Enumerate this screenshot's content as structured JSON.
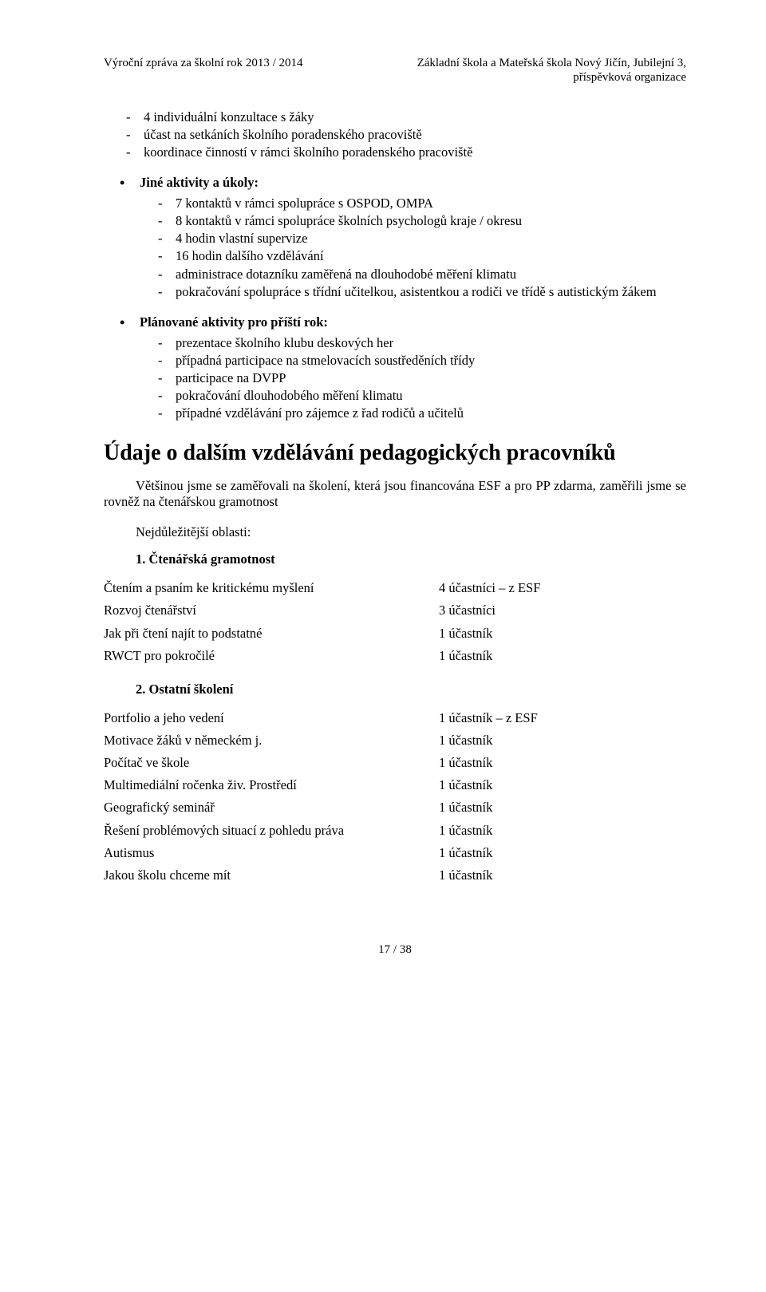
{
  "header": {
    "left": "Výroční zpráva za školní rok 2013 / 2014",
    "right_line1": "Základní škola a Mateřská škola Nový Jičín, Jubilejní 3,",
    "right_line2": "příspěvková organizace"
  },
  "section_a": {
    "items": [
      "4 individuální konzultace s žáky",
      "účast na setkáních školního poradenského pracoviště",
      "koordinace činností v rámci školního poradenského pracoviště"
    ]
  },
  "bullet1": {
    "title": "Jiné aktivity a úkoly:"
  },
  "section_b": {
    "items": [
      "7 kontaktů v rámci spolupráce s OSPOD, OMPA",
      "8 kontaktů v rámci spolupráce školních psychologů kraje / okresu",
      "4 hodin vlastní supervize",
      "16 hodin dalšího vzdělávání",
      "administrace dotazníku zaměřená na dlouhodobé měření klimatu",
      "pokračování spolupráce s třídní učitelkou, asistentkou a rodiči ve třídě s autistickým žákem"
    ]
  },
  "bullet2": {
    "title": "Plánované aktivity pro příští rok:"
  },
  "section_c": {
    "items": [
      "prezentace školního klubu deskových her",
      "případná participace na stmelovacích soustředěních třídy",
      "participace na DVPP",
      "pokračování dlouhodobého měření klimatu",
      "případné vzdělávání pro zájemce z řad rodičů a učitelů"
    ]
  },
  "h1": "Údaje o dalším vzdělávání pedagogických pracovníků",
  "para1": "Většinou jsme se zaměřovali na školení, která jsou financována ESF a pro PP zdarma, zaměřili jsme se rovněž na čtenářskou gramotnost",
  "para2": "Nejdůležitější oblasti:",
  "num1": "1. Čtenářská gramotnost",
  "table1": {
    "rows": [
      {
        "l": "Čtením a psaním ke kritickému myšlení",
        "r": "4 účastníci – z ESF"
      },
      {
        "l": "Rozvoj čtenářství",
        "r": "3 účastníci"
      },
      {
        "l": "Jak při čtení najít to podstatné",
        "r": "1 účastník"
      },
      {
        "l": "RWCT pro pokročilé",
        "r": "1 účastník"
      }
    ]
  },
  "num2": "2. Ostatní školení",
  "table2": {
    "rows": [
      {
        "l": "Portfolio a jeho vedení",
        "r": "1 účastník – z ESF"
      },
      {
        "l": "Motivace žáků v německém j.",
        "r": "1 účastník"
      },
      {
        "l": "Počítač ve škole",
        "r": "1 účastník"
      },
      {
        "l": "Multimediální ročenka živ. Prostředí",
        "r": "1 účastník"
      },
      {
        "l": "Geografický seminář",
        "r": "1 účastník"
      },
      {
        "l": "Řešení problémových situací z pohledu práva",
        "r": "1 účastník"
      },
      {
        "l": "Autismus",
        "r": "1 účastník"
      },
      {
        "l": "Jakou školu chceme mít",
        "r": "1 účastník"
      }
    ]
  },
  "footer": "17 / 38"
}
